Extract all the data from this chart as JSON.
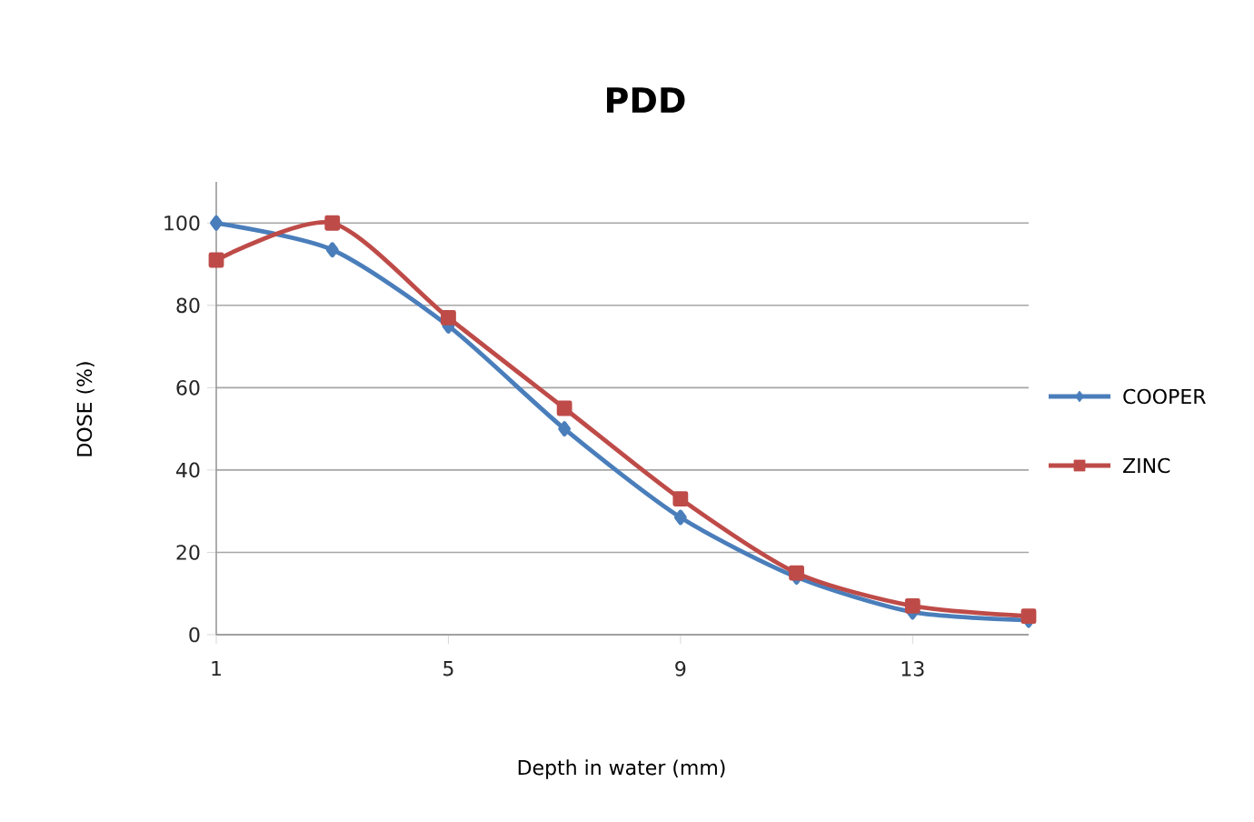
{
  "chart_data": {
    "type": "line",
    "title": "PDD",
    "xlabel": "Depth in water (mm)",
    "ylabel": "DOSE (%)",
    "x": [
      1,
      3,
      5,
      7,
      9,
      11,
      13,
      15
    ],
    "series": [
      {
        "name": "COOPER",
        "color": "#4a7ebb",
        "marker": "diamond",
        "values": [
          100,
          93.5,
          75,
          50,
          28.5,
          14,
          5.5,
          3.5
        ]
      },
      {
        "name": "ZINC",
        "color": "#be4b48",
        "marker": "square",
        "values": [
          91,
          100,
          77,
          55,
          33,
          15,
          7,
          4.5
        ]
      }
    ],
    "xlim": [
      1,
      15
    ],
    "xticks": [
      1,
      5,
      9,
      13
    ],
    "ylim": [
      0,
      110
    ],
    "yticks": [
      0,
      20,
      40,
      60,
      80,
      100
    ],
    "grid": "y",
    "legend": "right",
    "line_style": "solid"
  }
}
